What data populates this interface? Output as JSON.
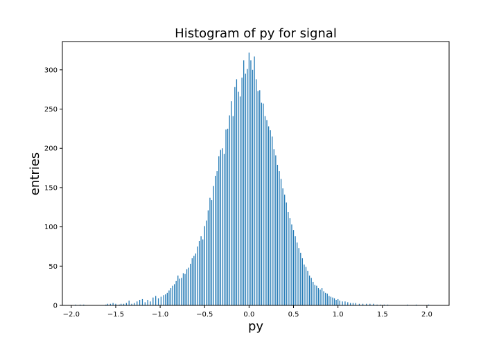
{
  "chart_data": {
    "type": "bar",
    "title": "Histogram of py for signal",
    "xlabel": "py",
    "ylabel": "entries",
    "xlim": [
      -2.1,
      2.25
    ],
    "ylim": [
      0,
      336
    ],
    "xticks": [
      -2.0,
      -1.5,
      -1.0,
      -0.5,
      0.0,
      0.5,
      1.0,
      1.5,
      2.0
    ],
    "xtick_labels": [
      "−2.0",
      "−1.5",
      "−1.0",
      "−0.5",
      "0.0",
      "0.5",
      "1.0",
      "1.5",
      "2.0"
    ],
    "yticks": [
      0,
      50,
      100,
      150,
      200,
      250,
      300
    ],
    "ytick_labels": [
      "0",
      "50",
      "100",
      "150",
      "200",
      "250",
      "300"
    ],
    "bar_color": "#1f77b4",
    "grid": false,
    "bin_width": 0.01,
    "bins": [
      [
        -1.95,
        1
      ],
      [
        -1.9,
        1
      ],
      [
        -1.86,
        1
      ],
      [
        -1.61,
        1
      ],
      [
        -1.59,
        2
      ],
      [
        -1.56,
        2
      ],
      [
        -1.53,
        3
      ],
      [
        -1.5,
        2
      ],
      [
        -1.46,
        1
      ],
      [
        -1.44,
        2
      ],
      [
        -1.41,
        2
      ],
      [
        -1.38,
        3
      ],
      [
        -1.35,
        6
      ],
      [
        -1.32,
        2
      ],
      [
        -1.29,
        3
      ],
      [
        -1.26,
        5
      ],
      [
        -1.23,
        7
      ],
      [
        -1.2,
        8
      ],
      [
        -1.17,
        4
      ],
      [
        -1.14,
        7
      ],
      [
        -1.11,
        5
      ],
      [
        -1.08,
        10
      ],
      [
        -1.05,
        12
      ],
      [
        -1.02,
        9
      ],
      [
        -0.99,
        11
      ],
      [
        -0.96,
        13
      ],
      [
        -0.94,
        14
      ],
      [
        -0.92,
        16
      ],
      [
        -0.9,
        19
      ],
      [
        -0.88,
        22
      ],
      [
        -0.86,
        25
      ],
      [
        -0.84,
        27
      ],
      [
        -0.82,
        31
      ],
      [
        -0.8,
        38
      ],
      [
        -0.78,
        34
      ],
      [
        -0.76,
        35
      ],
      [
        -0.74,
        41
      ],
      [
        -0.72,
        40
      ],
      [
        -0.7,
        46
      ],
      [
        -0.68,
        48
      ],
      [
        -0.66,
        53
      ],
      [
        -0.64,
        60
      ],
      [
        -0.62,
        63
      ],
      [
        -0.6,
        66
      ],
      [
        -0.58,
        75
      ],
      [
        -0.56,
        82
      ],
      [
        -0.54,
        88
      ],
      [
        -0.52,
        84
      ],
      [
        -0.5,
        101
      ],
      [
        -0.48,
        108
      ],
      [
        -0.46,
        121
      ],
      [
        -0.44,
        137
      ],
      [
        -0.42,
        134
      ],
      [
        -0.4,
        152
      ],
      [
        -0.38,
        165
      ],
      [
        -0.36,
        171
      ],
      [
        -0.34,
        190
      ],
      [
        -0.32,
        198
      ],
      [
        -0.3,
        200
      ],
      [
        -0.28,
        193
      ],
      [
        -0.26,
        224
      ],
      [
        -0.24,
        225
      ],
      [
        -0.22,
        242
      ],
      [
        -0.2,
        260
      ],
      [
        -0.18,
        241
      ],
      [
        -0.16,
        278
      ],
      [
        -0.14,
        288
      ],
      [
        -0.12,
        272
      ],
      [
        -0.1,
        266
      ],
      [
        -0.08,
        290
      ],
      [
        -0.06,
        312
      ],
      [
        -0.04,
        295
      ],
      [
        -0.02,
        301
      ],
      [
        0.0,
        322
      ],
      [
        0.02,
        312
      ],
      [
        0.04,
        300
      ],
      [
        0.06,
        317
      ],
      [
        0.08,
        288
      ],
      [
        0.1,
        273
      ],
      [
        0.12,
        274
      ],
      [
        0.14,
        258
      ],
      [
        0.16,
        257
      ],
      [
        0.18,
        241
      ],
      [
        0.2,
        236
      ],
      [
        0.22,
        228
      ],
      [
        0.24,
        223
      ],
      [
        0.26,
        215
      ],
      [
        0.28,
        199
      ],
      [
        0.3,
        191
      ],
      [
        0.32,
        179
      ],
      [
        0.34,
        171
      ],
      [
        0.36,
        161
      ],
      [
        0.38,
        149
      ],
      [
        0.4,
        141
      ],
      [
        0.42,
        131
      ],
      [
        0.44,
        119
      ],
      [
        0.46,
        111
      ],
      [
        0.48,
        103
      ],
      [
        0.5,
        96
      ],
      [
        0.52,
        88
      ],
      [
        0.54,
        80
      ],
      [
        0.56,
        73
      ],
      [
        0.58,
        67
      ],
      [
        0.6,
        60
      ],
      [
        0.62,
        52
      ],
      [
        0.64,
        49
      ],
      [
        0.66,
        44
      ],
      [
        0.68,
        38
      ],
      [
        0.7,
        35
      ],
      [
        0.72,
        30
      ],
      [
        0.74,
        26
      ],
      [
        0.76,
        25
      ],
      [
        0.78,
        22
      ],
      [
        0.8,
        20
      ],
      [
        0.82,
        22
      ],
      [
        0.84,
        18
      ],
      [
        0.86,
        16
      ],
      [
        0.88,
        15
      ],
      [
        0.9,
        12
      ],
      [
        0.92,
        11
      ],
      [
        0.94,
        10
      ],
      [
        0.96,
        9
      ],
      [
        0.98,
        7
      ],
      [
        1.0,
        8
      ],
      [
        1.02,
        6
      ],
      [
        1.05,
        5
      ],
      [
        1.08,
        5
      ],
      [
        1.11,
        4
      ],
      [
        1.14,
        3
      ],
      [
        1.17,
        3
      ],
      [
        1.2,
        3
      ],
      [
        1.24,
        2
      ],
      [
        1.28,
        2
      ],
      [
        1.32,
        2
      ],
      [
        1.36,
        2
      ],
      [
        1.4,
        2
      ],
      [
        1.44,
        1
      ],
      [
        1.48,
        1
      ],
      [
        1.52,
        1
      ],
      [
        1.56,
        1
      ],
      [
        1.78,
        1
      ],
      [
        1.88,
        1
      ],
      [
        2.02,
        1
      ]
    ]
  }
}
